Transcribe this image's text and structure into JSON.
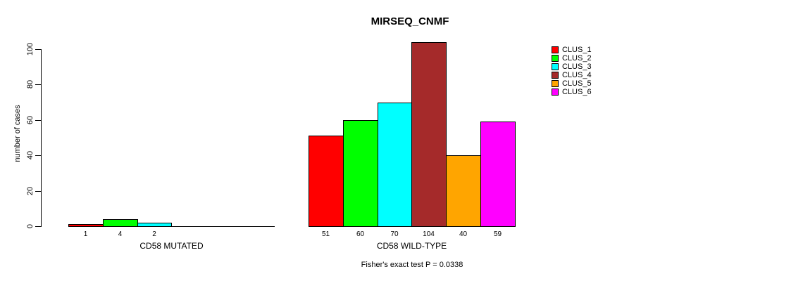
{
  "main": {
    "title": "MIRSEQ_CNMF",
    "footnote": "Fisher's exact test P = 0.0338"
  },
  "y_axis": {
    "label": "number of cases",
    "ticks": [
      0,
      20,
      40,
      60,
      80,
      100
    ]
  },
  "legend": {
    "items": [
      {
        "label": "CLUS_1",
        "color": "#FF0000"
      },
      {
        "label": "CLUS_2",
        "color": "#00FF00"
      },
      {
        "label": "CLUS_3",
        "color": "#00FFFF"
      },
      {
        "label": "CLUS_4",
        "color": "#A52A2A"
      },
      {
        "label": "CLUS_5",
        "color": "#FFA500"
      },
      {
        "label": "CLUS_6",
        "color": "#FF00FF"
      }
    ]
  },
  "chart_data": {
    "type": "bar",
    "title": "MIRSEQ_CNMF",
    "xlabel": "",
    "ylabel": "number of cases",
    "ylim": [
      0,
      100
    ],
    "grid": false,
    "legend_position": "top-right",
    "series": [
      "CLUS_1",
      "CLUS_2",
      "CLUS_3",
      "CLUS_4",
      "CLUS_5",
      "CLUS_6"
    ],
    "colors": [
      "#FF0000",
      "#00FF00",
      "#00FFFF",
      "#A52A2A",
      "#FFA500",
      "#FF00FF"
    ],
    "groups": [
      {
        "label": "CD58 MUTATED",
        "values": [
          1,
          4,
          2,
          0,
          0,
          0
        ]
      },
      {
        "label": "CD58 WILD-TYPE",
        "values": [
          51,
          60,
          70,
          104,
          40,
          59
        ]
      }
    ],
    "annotation": "Fisher's exact test P = 0.0338",
    "notes": "zero-value bars are drawn flat on the baseline with no value label"
  }
}
